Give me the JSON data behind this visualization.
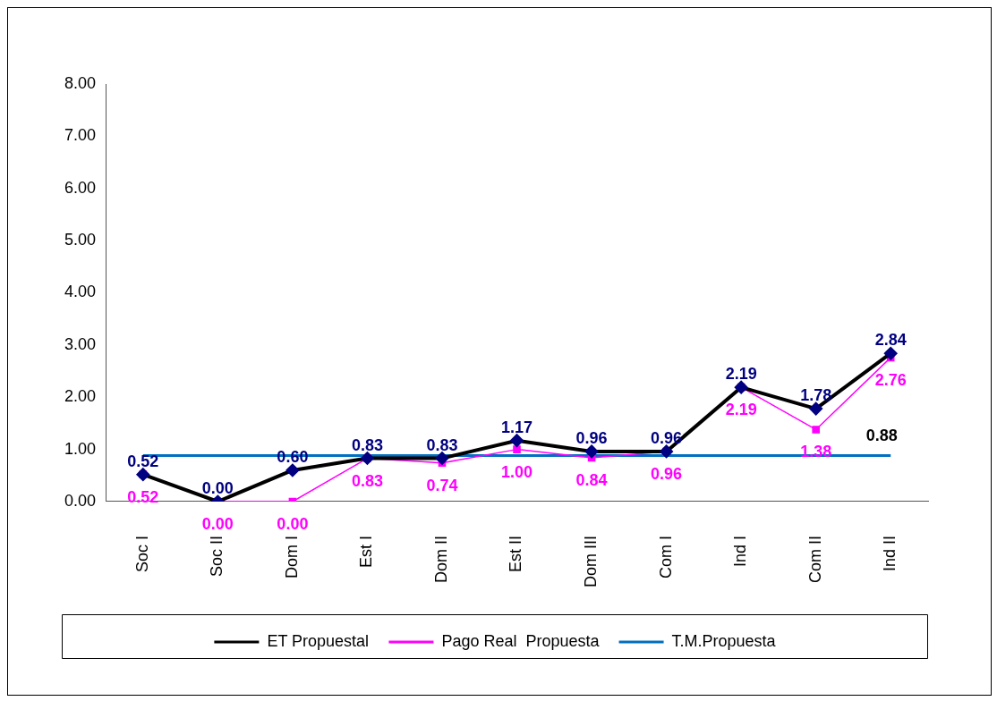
{
  "chart_data": {
    "type": "line",
    "categories": [
      "Soc I",
      "Soc II",
      "Dom I",
      "Est I",
      "Dom II",
      "Est II",
      "Dom III",
      "Com I",
      "Ind I",
      "Com II",
      "Ind II"
    ],
    "series": [
      {
        "name": "ET Propuestal",
        "color": "#000000",
        "marker": "diamond",
        "values": [
          0.52,
          0.0,
          0.6,
          0.83,
          0.83,
          1.17,
          0.96,
          0.96,
          2.19,
          1.78,
          2.84
        ],
        "value_labels": [
          "0.52",
          "0.00",
          "0.60",
          "0.83",
          "0.83",
          "1.17",
          "0.96",
          "0.96",
          "2.19",
          "1.78",
          "2.84"
        ]
      },
      {
        "name": "Pago Real  Propuesta",
        "color": "#ff00ff",
        "marker": "square",
        "values": [
          0.52,
          0.0,
          0.0,
          0.83,
          0.74,
          1.0,
          0.84,
          0.96,
          2.19,
          1.38,
          2.76
        ],
        "value_labels": [
          "0.52",
          "0.00",
          "0.00",
          "0.83",
          "0.74",
          "1.00",
          "0.84",
          "0.96",
          "2.19",
          "1.38",
          "2.76"
        ]
      },
      {
        "name": "T.M.Propuesta",
        "color": "#0070c0",
        "marker": "none",
        "values": [
          0.88,
          0.88,
          0.88,
          0.88,
          0.88,
          0.88,
          0.88,
          0.88,
          0.88,
          0.88,
          0.88
        ],
        "value_labels": [
          null,
          null,
          null,
          null,
          null,
          null,
          null,
          null,
          null,
          null,
          "0.88"
        ]
      }
    ],
    "ylim": [
      0,
      8
    ],
    "yticks": [
      {
        "value": 0,
        "label": "0.00"
      },
      {
        "value": 1,
        "label": "1.00"
      },
      {
        "value": 2,
        "label": "2.00"
      },
      {
        "value": 3,
        "label": "3.00"
      },
      {
        "value": 4,
        "label": "4.00"
      },
      {
        "value": 5,
        "label": "5.00"
      },
      {
        "value": 6,
        "label": "6.00"
      },
      {
        "value": 7,
        "label": "7.00"
      },
      {
        "value": 8,
        "label": "8.00"
      }
    ],
    "grid": false,
    "legend": "bottom",
    "line_style": "solid"
  }
}
